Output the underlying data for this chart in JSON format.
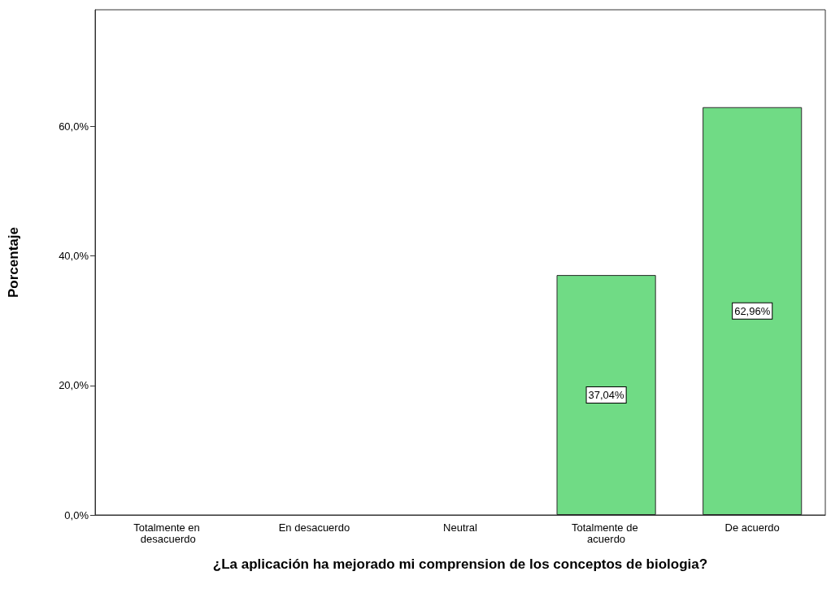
{
  "chart_data": {
    "type": "bar",
    "xlabel": "¿La aplicación ha mejorado mi comprension de los conceptos de biologia?",
    "ylabel": "Porcentaje",
    "categories": [
      "Totalmente en desacuerdo",
      "En desacuerdo",
      "Neutral",
      "Totalmente de acuerdo",
      "De acuerdo"
    ],
    "values": [
      0,
      0,
      0,
      37.04,
      62.96
    ],
    "value_labels": [
      null,
      null,
      null,
      "37,04%",
      "62,96%"
    ],
    "color": "#70db85",
    "ylim": [
      0,
      78
    ],
    "yticks": [
      {
        "value": 0,
        "label": "0,0%"
      },
      {
        "value": 20,
        "label": "20,0%"
      },
      {
        "value": 40,
        "label": "40,0%"
      },
      {
        "value": 60,
        "label": "60,0%"
      }
    ],
    "grid": false
  }
}
